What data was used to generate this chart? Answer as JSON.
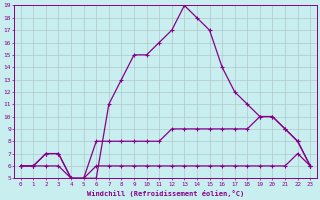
{
  "xlabel": "Windchill (Refroidissement éolien,°C)",
  "bg_color": "#c8eef0",
  "line_color": "#880088",
  "grid_color": "#b0c8c8",
  "ylim": [
    5,
    19
  ],
  "xlim": [
    -0.5,
    23.5
  ],
  "yticks": [
    5,
    6,
    7,
    8,
    9,
    10,
    11,
    12,
    13,
    14,
    15,
    16,
    17,
    18,
    19
  ],
  "xticks": [
    0,
    1,
    2,
    3,
    4,
    5,
    6,
    7,
    8,
    9,
    10,
    11,
    12,
    13,
    14,
    15,
    16,
    17,
    18,
    19,
    20,
    21,
    22,
    23
  ],
  "x_values": [
    0,
    1,
    2,
    3,
    4,
    5,
    6,
    7,
    8,
    9,
    10,
    11,
    12,
    13,
    14,
    15,
    16,
    17,
    18,
    19,
    20,
    21,
    22,
    23
  ],
  "y_main": [
    6,
    6,
    7,
    7,
    5,
    5,
    5,
    11,
    13,
    15,
    15,
    16,
    17,
    19,
    18,
    17,
    14,
    12,
    11,
    10,
    10,
    9,
    8,
    6
  ],
  "y_upper": [
    6,
    6,
    7,
    7,
    5,
    5,
    8,
    8,
    8,
    8,
    8,
    8,
    9,
    9,
    9,
    9,
    9,
    9,
    9,
    10,
    10,
    9,
    8,
    6
  ],
  "y_lower": [
    6,
    6,
    6,
    6,
    5,
    5,
    6,
    6,
    6,
    6,
    6,
    6,
    6,
    6,
    6,
    6,
    6,
    6,
    6,
    6,
    6,
    6,
    7,
    6
  ]
}
